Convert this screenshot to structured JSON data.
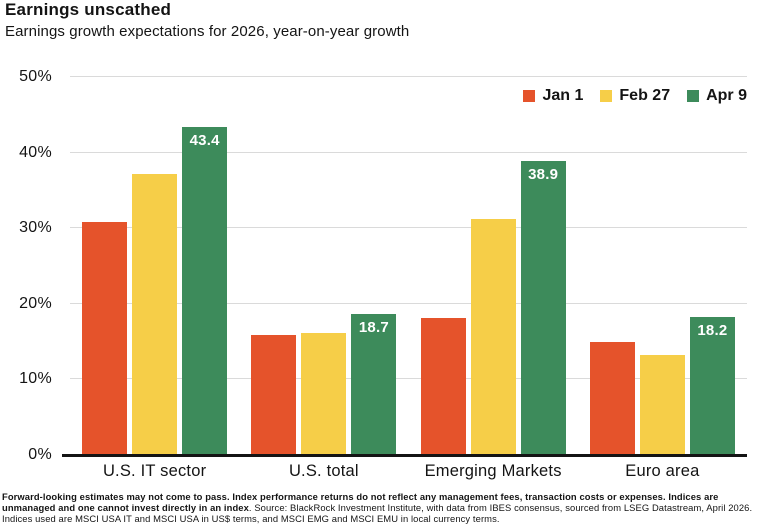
{
  "header": {
    "title": "Earnings unscathed",
    "subtitle": "Earnings growth expectations for 2026, year-on-year growth"
  },
  "footnote": {
    "bold": "Forward-looking estimates may not come to pass. Index performance returns do not reflect any management fees, transaction costs or expenses. Indices are unmanaged and one cannot invest directly in an index",
    "regular": ". Source: BlackRock Investment Institute, with data from IBES consensus, sourced from LSEG Datastream, April 2026. Indices used are MSCI USA IT and MSCI USA in US$ terms, and MSCI EMG and MSCI EMU in local currency terms."
  },
  "colors": {
    "jan1": "#E5532B",
    "feb27": "#F6CE48",
    "apr9": "#3D8B5B",
    "gridline": "#DADADA",
    "axis": "#141414",
    "bar_label_text": "#FFFFFF"
  },
  "chart_data": {
    "type": "bar",
    "title": "Earnings unscathed",
    "subtitle": "Earnings growth expectations for 2026, year-on-year growth",
    "categories": [
      "U.S. IT sector",
      "U.S. total",
      "Emerging Markets",
      "Euro area"
    ],
    "series": [
      {
        "name": "Jan 1",
        "color": "#E5532B",
        "values": [
          30.8,
          15.9,
          18.1,
          14.9
        ]
      },
      {
        "name": "Feb 27",
        "color": "#F6CE48",
        "values": [
          37.2,
          16.2,
          31.2,
          13.2
        ]
      },
      {
        "name": "Apr 9",
        "color": "#3D8B5B",
        "values": [
          43.4,
          18.7,
          38.9,
          18.2
        ],
        "data_labels": [
          "43.4",
          "18.7",
          "38.9",
          "18.2"
        ]
      }
    ],
    "ylim": [
      0,
      50
    ],
    "yticks": [
      {
        "value": 0,
        "label": "0%"
      },
      {
        "value": 10,
        "label": "10%"
      },
      {
        "value": 20,
        "label": "20%"
      },
      {
        "value": 30,
        "label": "30%"
      },
      {
        "value": 40,
        "label": "40%"
      },
      {
        "value": 50,
        "label": "50%"
      }
    ],
    "grid": "horizontal",
    "legend_position": "top-right",
    "value_labels_on_series": "Apr 9"
  }
}
